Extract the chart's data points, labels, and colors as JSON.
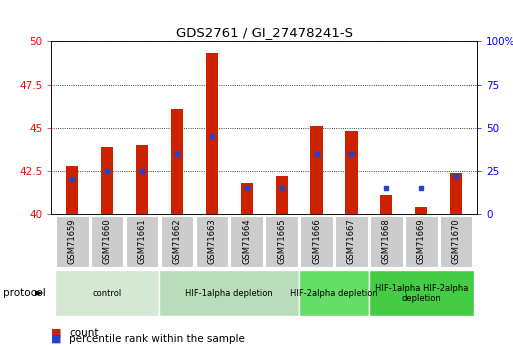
{
  "title": "GDS2761 / GI_27478241-S",
  "samples": [
    "GSM71659",
    "GSM71660",
    "GSM71661",
    "GSM71662",
    "GSM71663",
    "GSM71664",
    "GSM71665",
    "GSM71666",
    "GSM71667",
    "GSM71668",
    "GSM71669",
    "GSM71670"
  ],
  "count_values": [
    42.8,
    43.9,
    44.0,
    46.1,
    49.3,
    41.8,
    42.2,
    45.1,
    44.8,
    41.1,
    40.4,
    42.4
  ],
  "percentile_values": [
    20,
    25,
    25,
    35,
    45,
    15,
    15,
    35,
    35,
    15,
    15,
    22
  ],
  "y_min": 40,
  "y_max": 50,
  "y_ticks": [
    40,
    42.5,
    45,
    47.5,
    50
  ],
  "y_tick_labels": [
    "40",
    "42.5",
    "45",
    "47.5",
    "50"
  ],
  "right_y_ticks": [
    0,
    25,
    50,
    75,
    100
  ],
  "right_y_tick_labels": [
    "0",
    "25",
    "50",
    "75",
    "100%"
  ],
  "bar_color": "#cc2200",
  "percentile_color": "#2244cc",
  "bar_width": 0.35,
  "protocol_groups": [
    {
      "label": "control",
      "start": 0,
      "end": 2,
      "color": "#d4e8d4"
    },
    {
      "label": "HIF-1alpha depletion",
      "start": 3,
      "end": 6,
      "color": "#b8ddb8"
    },
    {
      "label": "HIF-2alpha depletion",
      "start": 7,
      "end": 8,
      "color": "#66dd66"
    },
    {
      "label": "HIF-1alpha HIF-2alpha\ndepletion",
      "start": 9,
      "end": 11,
      "color": "#44cc44"
    }
  ],
  "protocol_label": "protocol",
  "legend_count_label": "count",
  "legend_percentile_label": "percentile rank within the sample",
  "tick_bg_color": "#cccccc",
  "plot_bg_color": "#ffffff"
}
